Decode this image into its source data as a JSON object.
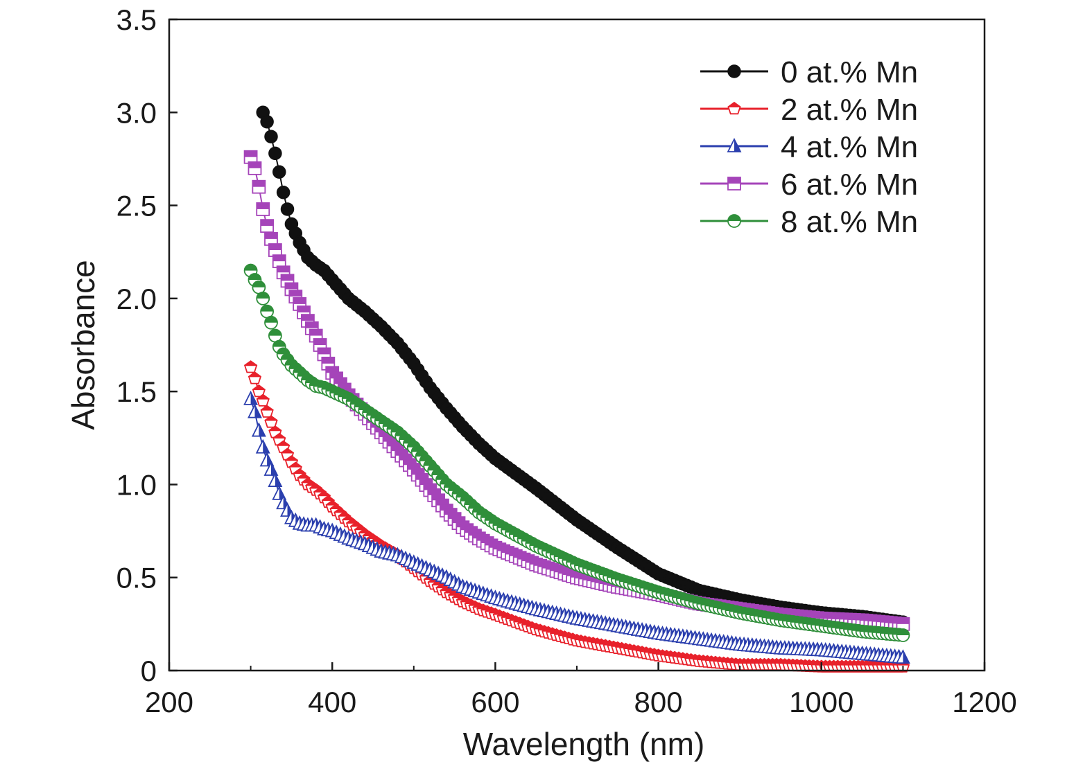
{
  "chart_data": {
    "type": "scatter",
    "title": "",
    "xlabel": "Wavelength (nm)",
    "ylabel": "Absorbance",
    "xlim": [
      200,
      1200
    ],
    "ylim": [
      0,
      3.5
    ],
    "x_ticks": [
      200,
      400,
      600,
      800,
      1000,
      1200
    ],
    "x_tick_labels": [
      "200",
      "400",
      "600",
      "800",
      "1000",
      "1200"
    ],
    "y_ticks": [
      0,
      0.5,
      1.0,
      1.5,
      2.0,
      2.5,
      3.0,
      3.5
    ],
    "y_tick_labels": [
      "0",
      "0.5",
      "1.0",
      "1.5",
      "2.0",
      "2.5",
      "3.0",
      "3.5"
    ],
    "grid": false,
    "legend_position": "top-right",
    "series": [
      {
        "name": "0 at.% Mn",
        "color": "#111111",
        "marker": "circle-filled",
        "x": [
          315,
          320,
          325,
          330,
          335,
          340,
          345,
          350,
          360,
          370,
          380,
          390,
          400,
          420,
          440,
          460,
          480,
          500,
          520,
          540,
          560,
          580,
          600,
          650,
          700,
          750,
          800,
          850,
          900,
          950,
          1000,
          1050,
          1100
        ],
        "y": [
          3.0,
          2.95,
          2.87,
          2.78,
          2.68,
          2.57,
          2.48,
          2.4,
          2.3,
          2.22,
          2.18,
          2.15,
          2.1,
          2.0,
          1.93,
          1.85,
          1.76,
          1.65,
          1.52,
          1.41,
          1.31,
          1.22,
          1.14,
          0.98,
          0.81,
          0.66,
          0.52,
          0.43,
          0.38,
          0.34,
          0.31,
          0.29,
          0.26
        ]
      },
      {
        "name": "2 at.% Mn",
        "color": "#e8212b",
        "marker": "pentagon-half",
        "x": [
          300,
          305,
          310,
          315,
          320,
          330,
          340,
          350,
          360,
          370,
          380,
          390,
          400,
          420,
          440,
          460,
          480,
          500,
          520,
          540,
          560,
          580,
          600,
          650,
          700,
          750,
          800,
          850,
          900,
          950,
          1000,
          1050,
          1100
        ],
        "y": [
          1.63,
          1.57,
          1.5,
          1.45,
          1.39,
          1.28,
          1.2,
          1.12,
          1.05,
          1.0,
          0.97,
          0.93,
          0.88,
          0.8,
          0.73,
          0.67,
          0.62,
          0.55,
          0.48,
          0.42,
          0.37,
          0.33,
          0.3,
          0.22,
          0.16,
          0.12,
          0.08,
          0.05,
          0.03,
          0.03,
          0.02,
          0.02,
          0.02
        ]
      },
      {
        "name": "4 at.% Mn",
        "color": "#2b3fae",
        "marker": "triangle-half",
        "x": [
          300,
          305,
          310,
          315,
          320,
          325,
          330,
          335,
          340,
          345,
          350,
          360,
          370,
          380,
          390,
          400,
          420,
          440,
          460,
          480,
          500,
          520,
          540,
          560,
          580,
          600,
          650,
          700,
          750,
          800,
          850,
          900,
          950,
          1000,
          1050,
          1100
        ],
        "y": [
          1.46,
          1.39,
          1.29,
          1.2,
          1.13,
          1.08,
          1.02,
          0.95,
          0.9,
          0.86,
          0.82,
          0.79,
          0.78,
          0.78,
          0.76,
          0.75,
          0.71,
          0.68,
          0.64,
          0.62,
          0.58,
          0.54,
          0.5,
          0.45,
          0.42,
          0.39,
          0.33,
          0.28,
          0.24,
          0.2,
          0.17,
          0.14,
          0.12,
          0.11,
          0.09,
          0.07
        ]
      },
      {
        "name": "6 at.% Mn",
        "color": "#a544b9",
        "marker": "square-half",
        "x": [
          300,
          305,
          310,
          315,
          320,
          325,
          330,
          335,
          340,
          350,
          360,
          370,
          380,
          390,
          400,
          420,
          440,
          460,
          480,
          500,
          520,
          540,
          560,
          580,
          600,
          650,
          700,
          750,
          800,
          850,
          900,
          950,
          1000,
          1050,
          1100
        ],
        "y": [
          2.76,
          2.7,
          2.6,
          2.48,
          2.39,
          2.32,
          2.26,
          2.2,
          2.14,
          2.05,
          1.97,
          1.88,
          1.8,
          1.7,
          1.6,
          1.48,
          1.38,
          1.28,
          1.18,
          1.08,
          0.97,
          0.86,
          0.77,
          0.71,
          0.66,
          0.57,
          0.5,
          0.45,
          0.41,
          0.36,
          0.33,
          0.3,
          0.28,
          0.27,
          0.25
        ]
      },
      {
        "name": "8 at.% Mn",
        "color": "#2f8f3a",
        "marker": "circle-half",
        "x": [
          300,
          305,
          310,
          315,
          320,
          325,
          330,
          335,
          340,
          350,
          360,
          370,
          380,
          390,
          400,
          420,
          440,
          460,
          480,
          500,
          520,
          540,
          560,
          580,
          600,
          650,
          700,
          750,
          800,
          850,
          900,
          950,
          1000,
          1050,
          1100
        ],
        "y": [
          2.15,
          2.1,
          2.06,
          2.0,
          1.93,
          1.87,
          1.8,
          1.74,
          1.7,
          1.64,
          1.6,
          1.56,
          1.53,
          1.52,
          1.5,
          1.46,
          1.4,
          1.34,
          1.28,
          1.2,
          1.1,
          1.0,
          0.93,
          0.85,
          0.79,
          0.67,
          0.57,
          0.49,
          0.42,
          0.36,
          0.31,
          0.27,
          0.24,
          0.21,
          0.19
        ]
      }
    ]
  }
}
